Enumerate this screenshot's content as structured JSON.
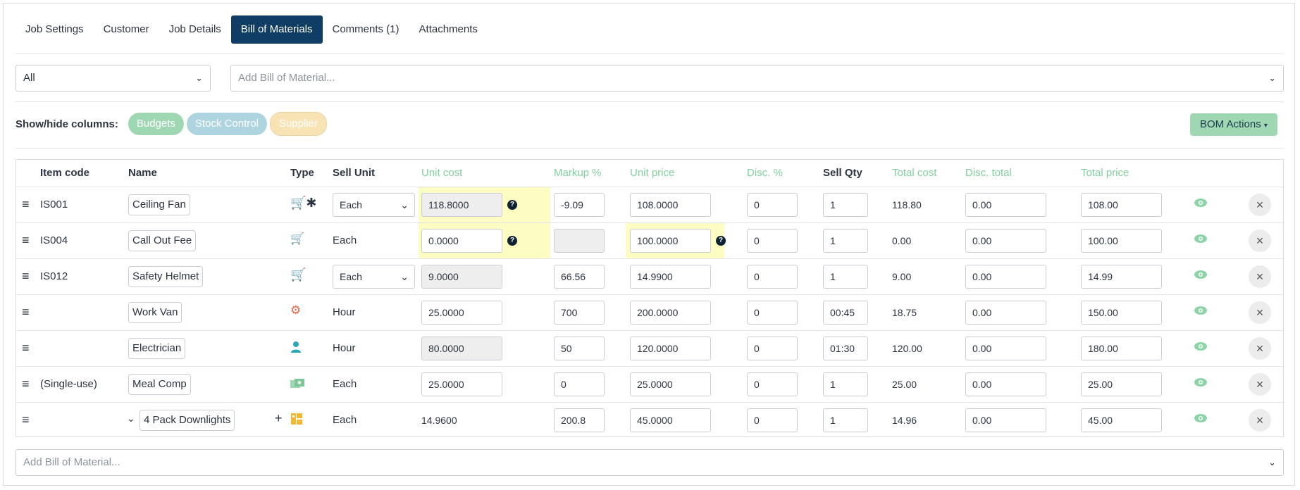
{
  "tabs": [
    "Job Settings",
    "Customer",
    "Job Details",
    "Bill of Materials",
    "Comments (1)",
    "Attachments"
  ],
  "active_tab": "Bill of Materials",
  "filter_select": {
    "value": "All"
  },
  "add_bom_top": {
    "placeholder": "Add Bill of Material..."
  },
  "show_hide": {
    "label": "Show/hide columns:",
    "pills": [
      "Budgets",
      "Stock Control",
      "Supplier"
    ]
  },
  "bom_actions_label": "BOM Actions",
  "headers": {
    "item_code": "Item code",
    "name": "Name",
    "type": "Type",
    "sell_unit": "Sell Unit",
    "unit_cost": "Unit cost",
    "markup": "Markup %",
    "unit_price": "Unit price",
    "disc": "Disc. %",
    "sell_qty": "Sell Qty",
    "total_cost": "Total cost",
    "disc_total": "Disc. total",
    "total_price": "Total price"
  },
  "rows": [
    {
      "code": "IS001",
      "name": "Ceiling Fan",
      "type_icon": "cart-star-icon",
      "sell_unit": "Each",
      "unit_cost": "118.8000",
      "markup": "-9.09",
      "unit_price": "108.0000",
      "disc": "0",
      "qty": "1",
      "total_cost": "118.80",
      "disc_total": "0.00",
      "total_price": "108.00"
    },
    {
      "code": "IS004",
      "name": "Call Out Fee",
      "type_icon": "cart-arrow-icon",
      "sell_unit": "Each",
      "unit_cost": "0.0000",
      "markup": "",
      "unit_price": "100.0000",
      "disc": "0",
      "qty": "1",
      "total_cost": "0.00",
      "disc_total": "0.00",
      "total_price": "100.00"
    },
    {
      "code": "IS012",
      "name": "Safety Helmet",
      "type_icon": "cart-icon",
      "sell_unit": "Each",
      "unit_cost": "9.0000",
      "markup": "66.56",
      "unit_price": "14.9900",
      "disc": "0",
      "qty": "1",
      "total_cost": "9.00",
      "disc_total": "0.00",
      "total_price": "14.99"
    },
    {
      "code": "",
      "name": "Work Van",
      "type_icon": "gear-icon",
      "sell_unit": "Hour",
      "unit_cost": "25.0000",
      "markup": "700",
      "unit_price": "200.0000",
      "disc": "0",
      "qty": "00:45",
      "total_cost": "18.75",
      "disc_total": "0.00",
      "total_price": "150.00"
    },
    {
      "code": "",
      "name": "Electrician",
      "type_icon": "person-icon",
      "sell_unit": "Hour",
      "unit_cost": "80.0000",
      "markup": "50",
      "unit_price": "120.0000",
      "disc": "0",
      "qty": "01:30",
      "total_cost": "120.00",
      "disc_total": "0.00",
      "total_price": "180.00"
    },
    {
      "code": "(Single-use)",
      "name": "Meal Comp",
      "type_icon": "money-icon",
      "sell_unit": "Each",
      "unit_cost": "25.0000",
      "markup": "0",
      "unit_price": "25.0000",
      "disc": "0",
      "qty": "1",
      "total_cost": "25.00",
      "disc_total": "0.00",
      "total_price": "25.00"
    },
    {
      "code": "",
      "name": "4 Pack Downlights",
      "type_icon": "bundle-icon",
      "sell_unit": "Each",
      "unit_cost": "14.9600",
      "markup": "200.8",
      "unit_price": "45.0000",
      "disc": "0",
      "qty": "1",
      "total_cost": "14.96",
      "disc_total": "0.00",
      "total_price": "45.00"
    }
  ],
  "add_bom_bottom": {
    "placeholder": "Add Bill of Material..."
  },
  "colors": {
    "accent": "#0f3d63",
    "green": "#7fcf9c",
    "highlight": "#fdfcc3"
  }
}
